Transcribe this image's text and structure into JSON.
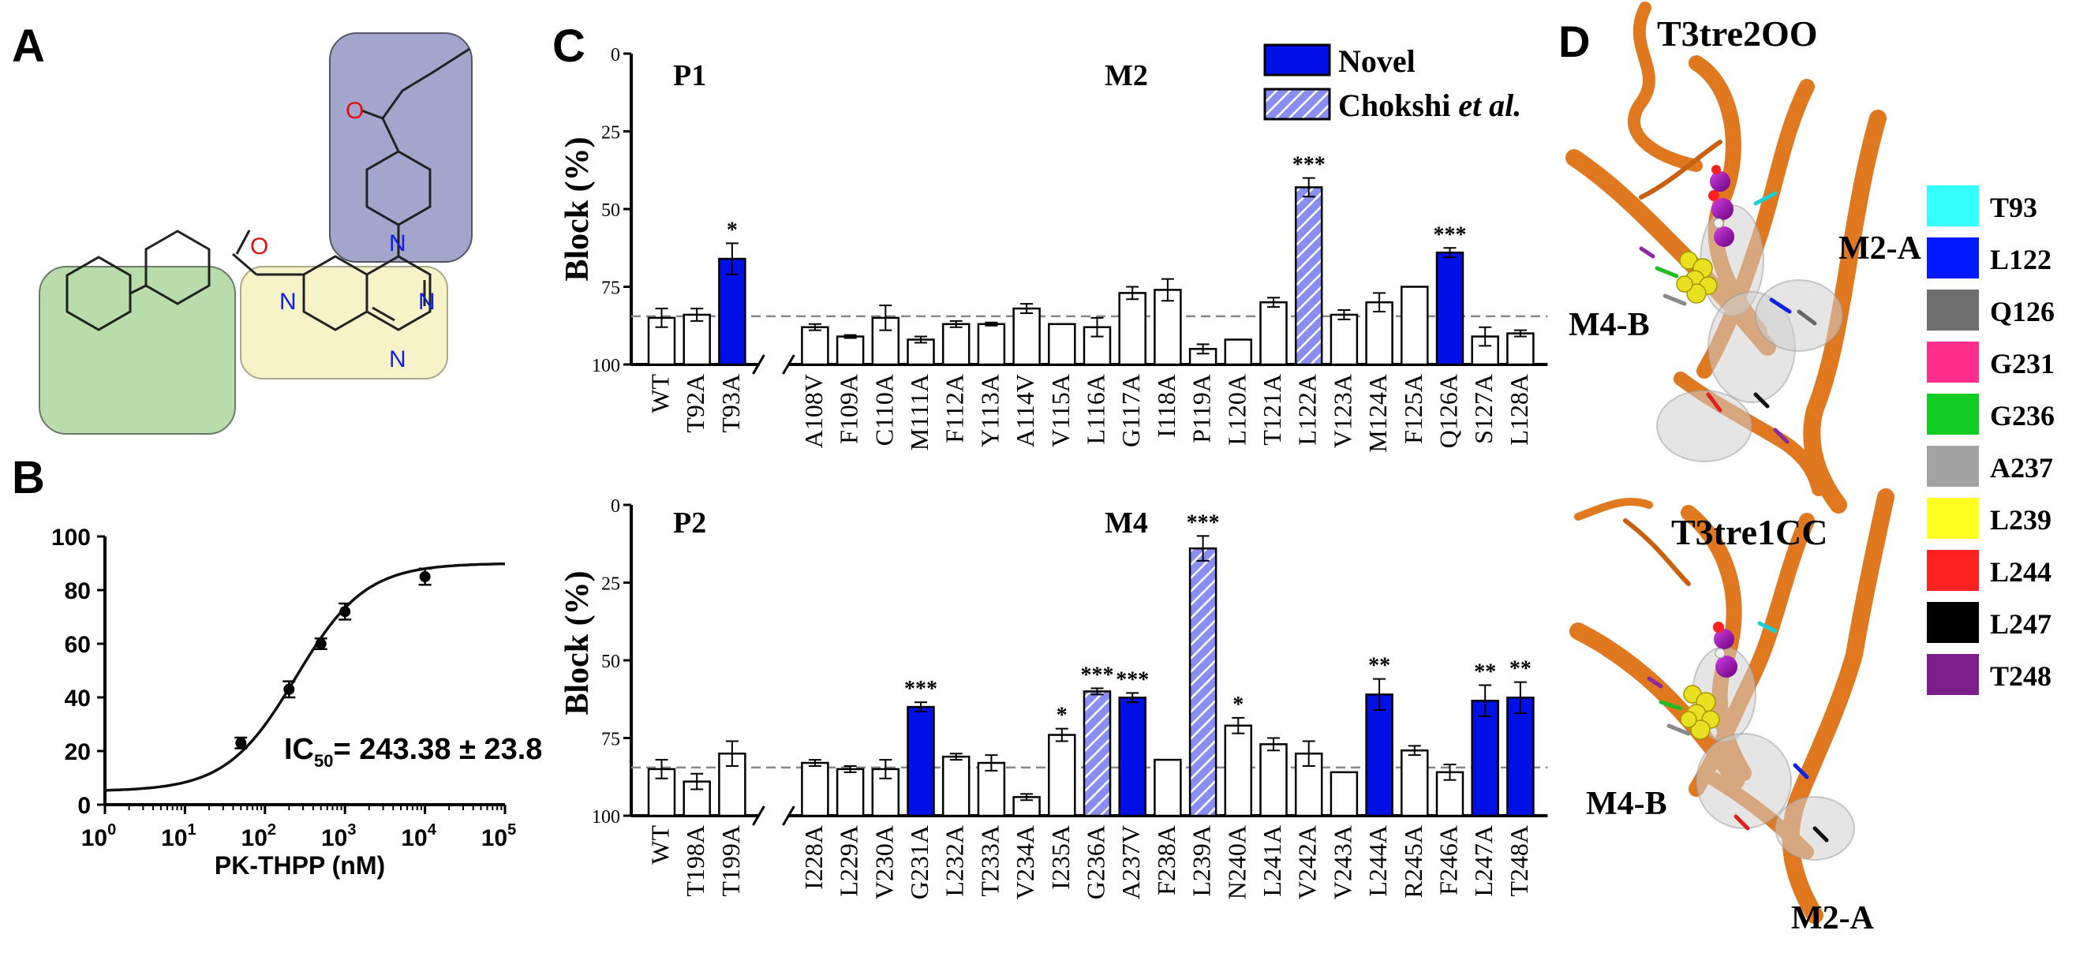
{
  "panels": {
    "A": "A",
    "B": "B",
    "C": "C",
    "D": "D"
  },
  "colors": {
    "novel": "#0010e6",
    "chokshi": "#8a8ef2",
    "ring_green": "#b8ddab",
    "ring_yellow": "#f7f3c8",
    "ring_purple": "#a3a5cc",
    "helix": "#e07820",
    "curve": "#111111"
  },
  "panelA": {
    "atoms": {
      "o1": "O",
      "o2": "O",
      "n1": "N",
      "n2": "N",
      "n3": "N",
      "n4": "N"
    }
  },
  "panelB": {
    "ic50_label": "IC",
    "ic50_sub": "50",
    "ic50_value": "= 243.38 ± 23.8",
    "xlabel": "PK-THPP (nM)",
    "ylabel": "",
    "yticks": [
      "0",
      "20",
      "40",
      "60",
      "80",
      "100"
    ],
    "xticks": [
      {
        "base": "10",
        "exp": "0"
      },
      {
        "base": "10",
        "exp": "1"
      },
      {
        "base": "10",
        "exp": "2"
      },
      {
        "base": "10",
        "exp": "3"
      },
      {
        "base": "10",
        "exp": "4"
      },
      {
        "base": "10",
        "exp": "5"
      }
    ]
  },
  "panelC": {
    "legend": {
      "novel": "Novel",
      "chokshi": "Chokshi",
      "chokshi_etal": "et al."
    },
    "ylabel": "Block (%)",
    "yticks": [
      "0",
      "25",
      "50",
      "75",
      "100"
    ],
    "top_labels": {
      "left": "P1",
      "right": "M2"
    },
    "bottom_labels": {
      "left": "P2",
      "right": "M4"
    }
  },
  "panelD": {
    "top_title": "T3tre2OO",
    "bottom_title": "T3tre1CC",
    "top_labels": {
      "m2": "M2-A",
      "m4": "M4-B"
    },
    "bottom_labels": {
      "m4": "M4-B",
      "m2": "M2-A"
    },
    "legend": [
      {
        "label": "T93",
        "color": "#33ffff"
      },
      {
        "label": "L122",
        "color": "#0019ff"
      },
      {
        "label": "Q126",
        "color": "#6e6e6e"
      },
      {
        "label": "G231",
        "color": "#ff2d8c"
      },
      {
        "label": "G236",
        "color": "#11cc22"
      },
      {
        "label": "A237",
        "color": "#a3a3a3"
      },
      {
        "label": "L239",
        "color": "#ffff22"
      },
      {
        "label": "L244",
        "color": "#ff2222"
      },
      {
        "label": "L247",
        "color": "#000000"
      },
      {
        "label": "T248",
        "color": "#7d1f8a"
      }
    ]
  },
  "chart_data": [
    {
      "type": "scatter",
      "panel": "B",
      "title": "",
      "xlabel": "PK-THPP (nM)",
      "ylabel": "",
      "xscale": "log",
      "xlim": [
        1,
        100000
      ],
      "ylim": [
        0,
        100
      ],
      "grid": false,
      "annotation": "IC50 = 243.38 ± 23.8",
      "fit": {
        "model": "hill",
        "bottom": 5,
        "top": 90,
        "ic50": 243.38,
        "hill": 1.0
      },
      "x": [
        50,
        200,
        500,
        1000,
        10000
      ],
      "y": [
        23,
        43,
        60,
        72,
        85
      ],
      "yerr": [
        2,
        3,
        2,
        3,
        3
      ]
    },
    {
      "type": "bar",
      "panel": "C-top",
      "title": "",
      "xlabel": "",
      "ylabel": "Block (%)",
      "ylim": [
        0,
        100
      ],
      "y_inverted": true,
      "reference_line": 84.5,
      "categories": [
        "WT",
        "T92A",
        "T93A",
        "A108V",
        "F109A",
        "C110A",
        "M111A",
        "F112A",
        "Y113A",
        "A114V",
        "V115A",
        "L116A",
        "G117A",
        "I118A",
        "P119A",
        "L120A",
        "T121A",
        "L122A",
        "V123A",
        "M124A",
        "F125A",
        "Q126A",
        "S127A",
        "L128A"
      ],
      "values": [
        85,
        84,
        66,
        88,
        91,
        85,
        92,
        87,
        87,
        82,
        87,
        88,
        77,
        76,
        95,
        92,
        80,
        43,
        84,
        80,
        75,
        64,
        91,
        90
      ],
      "errors": [
        3,
        2,
        5,
        1,
        0.5,
        4,
        1,
        1,
        0.5,
        1.5,
        0,
        3,
        2,
        3.5,
        1.5,
        0,
        1.5,
        3,
        1.5,
        3,
        0,
        1.5,
        3,
        1
      ],
      "kind": [
        "open",
        "open",
        "novel",
        "open",
        "open",
        "open",
        "open",
        "open",
        "open",
        "open",
        "open",
        "open",
        "open",
        "open",
        "open",
        "open",
        "open",
        "chokshi",
        "open",
        "open",
        "open",
        "novel",
        "open",
        "open"
      ],
      "significance": [
        "",
        "",
        "*",
        "",
        "",
        "",
        "",
        "",
        "",
        "",
        "",
        "",
        "",
        "",
        "",
        "",
        "",
        "***",
        "",
        "",
        "",
        "***",
        "",
        ""
      ],
      "break_after_index": 2,
      "legend": [
        "Novel",
        "Chokshi et al."
      ]
    },
    {
      "type": "bar",
      "panel": "C-bottom",
      "title": "",
      "xlabel": "",
      "ylabel": "Block (%)",
      "ylim": [
        0,
        100
      ],
      "y_inverted": true,
      "reference_line": 84.5,
      "categories": [
        "WT",
        "T198A",
        "T199A",
        "I228A",
        "L229A",
        "V230A",
        "G231A",
        "L232A",
        "T233A",
        "V234A",
        "I235A",
        "G236A",
        "A237V",
        "F238A",
        "L239A",
        "N240A",
        "L241A",
        "V242A",
        "V243A",
        "L244A",
        "R245A",
        "F246A",
        "L247A",
        "T248A"
      ],
      "values": [
        85,
        89,
        80,
        83,
        85,
        85,
        65,
        81,
        83,
        94,
        74,
        60,
        62,
        82,
        14,
        71,
        77,
        80,
        86,
        61,
        79,
        86,
        63,
        62
      ],
      "errors": [
        3,
        2.5,
        4,
        1,
        1,
        3,
        1.5,
        1,
        2.5,
        1,
        2,
        1,
        1.5,
        0,
        4,
        2.5,
        2,
        4,
        0,
        5,
        1.5,
        2.5,
        5,
        5
      ],
      "kind": [
        "open",
        "open",
        "open",
        "open",
        "open",
        "open",
        "novel",
        "open",
        "open",
        "open",
        "open",
        "chokshi",
        "novel",
        "open",
        "chokshi",
        "open",
        "open",
        "open",
        "open",
        "novel",
        "open",
        "open",
        "novel",
        "novel"
      ],
      "significance": [
        "",
        "",
        "",
        "",
        "",
        "",
        "***",
        "",
        "",
        "",
        "*",
        "***",
        "***",
        "",
        "***",
        "*",
        "",
        "",
        "",
        "**",
        "",
        "",
        "**",
        "**"
      ],
      "break_after_index": 2,
      "legend": [
        "Novel",
        "Chokshi et al."
      ]
    }
  ]
}
